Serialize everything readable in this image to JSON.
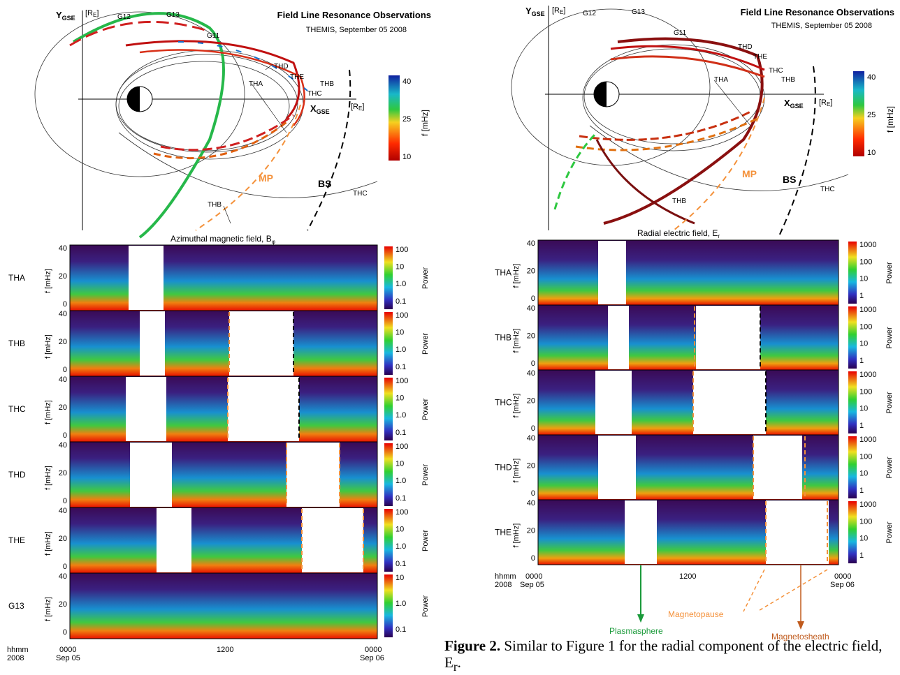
{
  "figure1": {
    "orbit": {
      "title": "Field Line Resonance Observations",
      "subtitle": "THEMIS, September 05 2008",
      "y_axis_label": "Y",
      "y_axis_sub": "GSE",
      "y_unit": "[R",
      "y_unit_sub": "E",
      "y_unit_close": "]",
      "x_axis_label": "X",
      "x_axis_sub": "GSE",
      "x_unit": "[R",
      "x_unit_sub": "E",
      "x_unit_close": "]",
      "labels": {
        "g12": "G12",
        "g13": "G13",
        "g11": "G11",
        "thd": "THD",
        "the": "THE",
        "thc": "THC",
        "thb": "THB",
        "tha": "THA",
        "thb2": "THB",
        "thc2": "THC",
        "mp": "MP",
        "bs": "BS"
      },
      "colorbar": {
        "label": "f [mHz]",
        "ticks": [
          "40",
          "25",
          "10"
        ]
      }
    },
    "spectro_title": "Azimuthal magnetic field, B",
    "spectro_title_sub": "φ",
    "ylabel": "f [mHz]",
    "cb_label": "Power",
    "panels": [
      {
        "name": "THA",
        "yticks": [
          "40",
          "20",
          "0"
        ],
        "cb": [
          "100",
          "10",
          "1.0",
          "0.1"
        ]
      },
      {
        "name": "THB",
        "yticks": [
          "40",
          "20",
          "0"
        ],
        "cb": [
          "100",
          "10",
          "1.0",
          "0.1"
        ]
      },
      {
        "name": "THC",
        "yticks": [
          "40",
          "20",
          "0"
        ],
        "cb": [
          "100",
          "10",
          "1.0",
          "0.1"
        ]
      },
      {
        "name": "THD",
        "yticks": [
          "40",
          "20",
          "0"
        ],
        "cb": [
          "100",
          "10",
          "1.0",
          "0.1"
        ]
      },
      {
        "name": "THE",
        "yticks": [
          "40",
          "20",
          "0"
        ],
        "cb": [
          "100",
          "10",
          "1.0",
          "0.1"
        ]
      },
      {
        "name": "G13",
        "yticks": [
          "40",
          "20",
          "0"
        ],
        "cb": [
          "10",
          "1.0",
          "0.1"
        ]
      }
    ],
    "xaxis": {
      "hhmm": "hhmm",
      "year": "2008",
      "t0": "0000",
      "d0": "Sep 05",
      "t1": "1200",
      "t2": "0000",
      "d2": "Sep 06"
    }
  },
  "figure2": {
    "orbit": {
      "title": "Field Line Resonance Observations",
      "subtitle": "THEMIS, September 05 2008",
      "y_axis_label": "Y",
      "y_axis_sub": "GSE",
      "y_unit": "[R",
      "y_unit_sub": "E",
      "y_unit_close": "]",
      "x_axis_label": "X",
      "x_axis_sub": "GSE",
      "x_unit": "[R",
      "x_unit_sub": "E",
      "x_unit_close": "]",
      "labels": {
        "g12": "G12",
        "g13": "G13",
        "g11": "G11",
        "thd": "THD",
        "the": "THE",
        "thc": "THC",
        "thb": "THB",
        "tha": "THA",
        "thb2": "THB",
        "thc2": "THC",
        "mp": "MP",
        "bs": "BS"
      },
      "colorbar": {
        "label": "f [mHz]",
        "ticks": [
          "40",
          "25",
          "10"
        ]
      }
    },
    "spectro_title": "Radial electric field, E",
    "spectro_title_sub": "r",
    "ylabel": "f [mHz]",
    "cb_label": "Power",
    "panels": [
      {
        "name": "THA",
        "yticks": [
          "40",
          "20",
          "0"
        ],
        "cb": [
          "1000",
          "100",
          "10",
          "1"
        ]
      },
      {
        "name": "THB",
        "yticks": [
          "40",
          "20",
          "0"
        ],
        "cb": [
          "1000",
          "100",
          "10",
          "1"
        ]
      },
      {
        "name": "THC",
        "yticks": [
          "40",
          "20",
          "0"
        ],
        "cb": [
          "1000",
          "100",
          "10",
          "1"
        ]
      },
      {
        "name": "THD",
        "yticks": [
          "40",
          "20",
          "0"
        ],
        "cb": [
          "1000",
          "100",
          "10",
          "1"
        ]
      },
      {
        "name": "THE",
        "yticks": [
          "40",
          "20",
          "0"
        ],
        "cb": [
          "1000",
          "100",
          "10",
          "1"
        ]
      }
    ],
    "xaxis": {
      "hhmm": "hhmm",
      "year": "2008",
      "t0": "0000",
      "d0": "Sep 05",
      "t1": "1200",
      "t2": "0000",
      "d2": "Sep 06"
    },
    "annotations": {
      "plasmasphere": "Plasmasphere",
      "magnetopause": "Magnetopause",
      "magnetosheath": "Magnetosheath"
    }
  },
  "caption": {
    "label": "Figure 2.",
    "text": "Similar to Figure 1 for the radial component of the electric field, E",
    "sub": "r",
    "end": "."
  },
  "colors": {
    "magnetopause": "#f4913a",
    "plasmasphere": "#1a9a3a",
    "magnetosheath": "#c05a1c",
    "spectro_bg": "#3a0a55"
  }
}
